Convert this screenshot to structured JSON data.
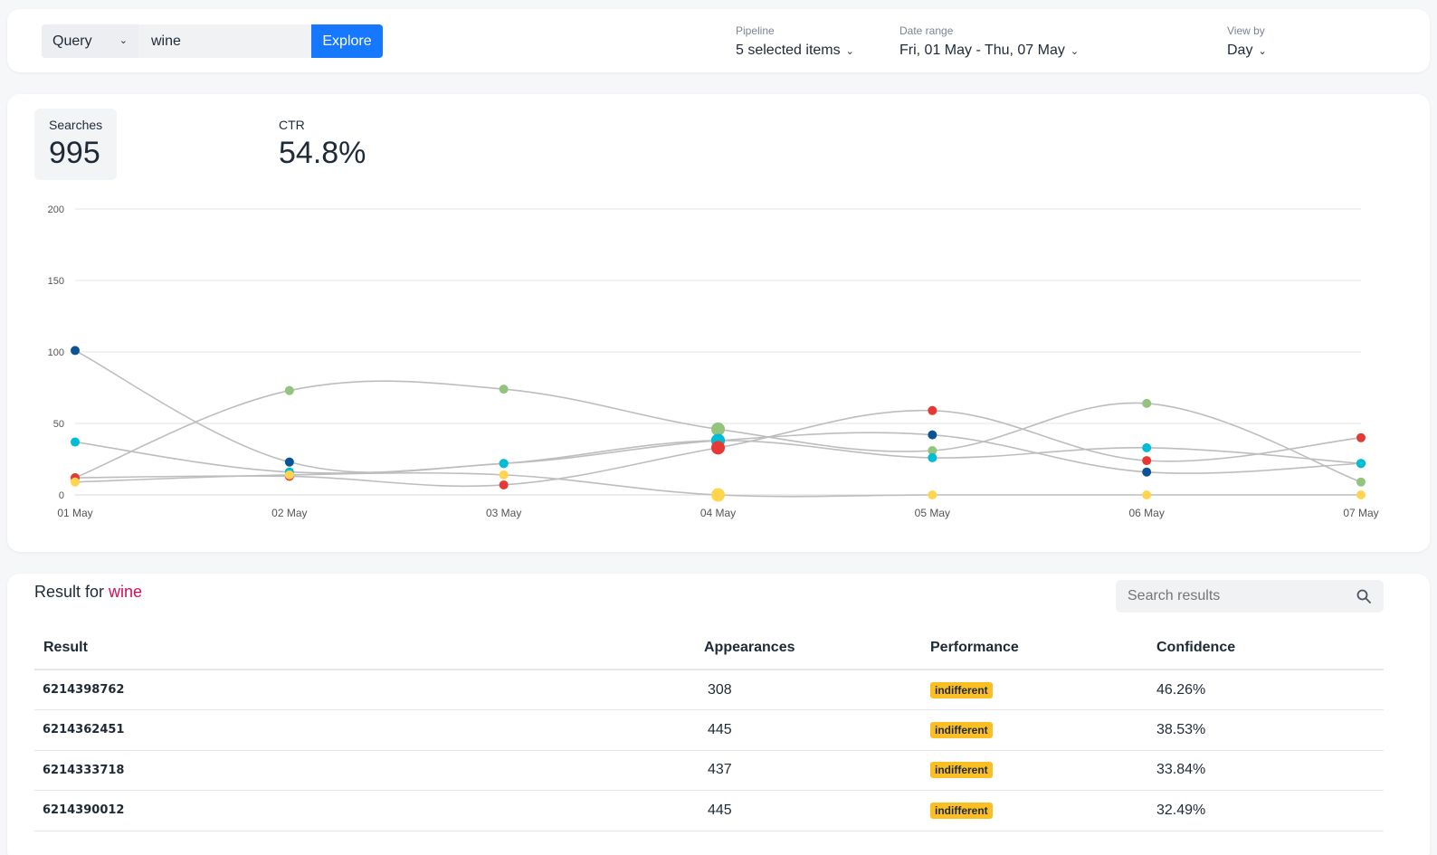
{
  "toolbar": {
    "query_select": "Query",
    "query_value": "wine",
    "explore_label": "Explore",
    "filters": [
      {
        "label": "Pipeline",
        "value": "5 selected items"
      },
      {
        "label": "Date range",
        "value": "Fri, 01 May - Thu, 07 May"
      },
      {
        "label": "View by",
        "value": "Day"
      }
    ]
  },
  "kpis": [
    {
      "label": "Searches",
      "value": "995"
    },
    {
      "label": "CTR",
      "value": "54.8%"
    }
  ],
  "chart_data": {
    "type": "line",
    "categories": [
      "01 May",
      "02 May",
      "03 May",
      "04 May",
      "05 May",
      "06 May",
      "07 May"
    ],
    "ylim": [
      0,
      200
    ],
    "yticks": [
      0,
      50,
      100,
      150,
      200
    ],
    "grid": true,
    "line_color": "#bdbdbd",
    "series": [
      {
        "color": "#0b5394",
        "values": [
          101,
          23,
          22,
          38,
          42,
          16,
          22
        ]
      },
      {
        "color": "#93c47d",
        "values": [
          12,
          73,
          74,
          46,
          31,
          64,
          9
        ]
      },
      {
        "color": "#00bcd4",
        "values": [
          37,
          16,
          22,
          38,
          26,
          33,
          22
        ]
      },
      {
        "color": "#e53935",
        "values": [
          12,
          13,
          7,
          33,
          59,
          24,
          40
        ]
      },
      {
        "color": "#ffd54f",
        "values": [
          9,
          14,
          14,
          0,
          0,
          0,
          0
        ]
      }
    ]
  },
  "results": {
    "title_prefix": "Result for",
    "query": "wine",
    "search_placeholder": "Search results",
    "columns": [
      "Result",
      "Appearances",
      "Performance",
      "Confidence"
    ],
    "rows": [
      {
        "id": "6214398762",
        "appearances": "308",
        "performance": "indifferent",
        "confidence": "46.26%"
      },
      {
        "id": "6214362451",
        "appearances": "445",
        "performance": "indifferent",
        "confidence": "38.53%"
      },
      {
        "id": "6214333718",
        "appearances": "437",
        "performance": "indifferent",
        "confidence": "33.84%"
      },
      {
        "id": "6214390012",
        "appearances": "445",
        "performance": "indifferent",
        "confidence": "32.49%"
      }
    ]
  }
}
